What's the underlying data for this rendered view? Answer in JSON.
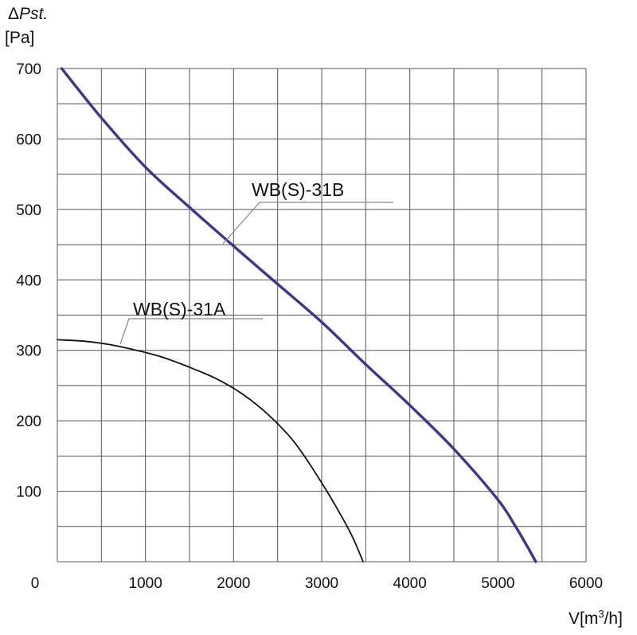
{
  "chart_data": {
    "type": "line",
    "title": "",
    "ylabel_symbol": "Δ",
    "ylabel_main": "Pst.",
    "yunit": "[Pa]",
    "xlabel_main": "V[m",
    "xlabel_sup": "3",
    "xlabel_end": "/h]",
    "xlim": [
      0,
      6000
    ],
    "ylim": [
      0,
      700
    ],
    "x_ticks": [
      "0",
      "1000",
      "2000",
      "3000",
      "4000",
      "5000",
      "6000"
    ],
    "y_ticks": [
      "100",
      "200",
      "300",
      "400",
      "500",
      "600",
      "700"
    ],
    "grid": true,
    "series": [
      {
        "name": "WB(S)-31B",
        "color": "#3b3790",
        "points": [
          [
            50,
            700
          ],
          [
            500,
            630
          ],
          [
            1000,
            560
          ],
          [
            1500,
            503
          ],
          [
            2000,
            448
          ],
          [
            2500,
            394
          ],
          [
            3000,
            340
          ],
          [
            3500,
            280
          ],
          [
            4000,
            222
          ],
          [
            4500,
            160
          ],
          [
            5000,
            88
          ],
          [
            5200,
            50
          ],
          [
            5350,
            18
          ],
          [
            5430,
            0
          ]
        ]
      },
      {
        "name": "WB(S)-31A",
        "color": "#111111",
        "points": [
          [
            0,
            315
          ],
          [
            300,
            313
          ],
          [
            600,
            308
          ],
          [
            900,
            300
          ],
          [
            1200,
            290
          ],
          [
            1500,
            276
          ],
          [
            1800,
            260
          ],
          [
            2100,
            238
          ],
          [
            2400,
            208
          ],
          [
            2700,
            168
          ],
          [
            3000,
            112
          ],
          [
            3200,
            70
          ],
          [
            3350,
            35
          ],
          [
            3470,
            0
          ]
        ]
      }
    ]
  }
}
